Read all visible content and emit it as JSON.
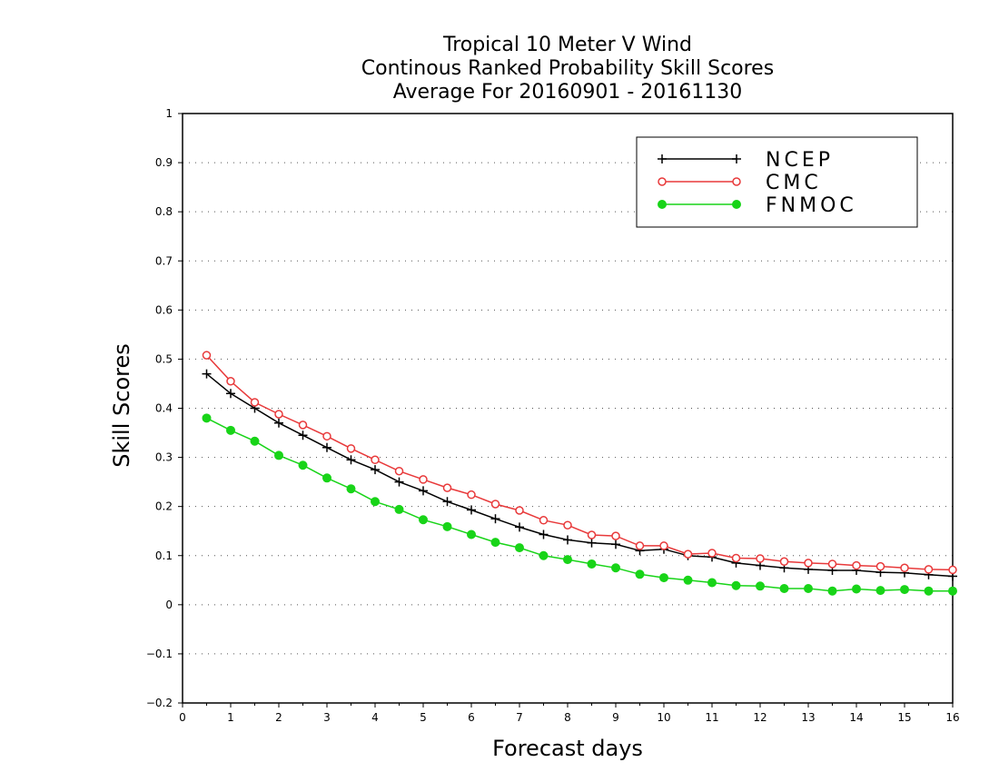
{
  "chart_data": {
    "type": "line",
    "title": [
      "Tropical 10 Meter V Wind",
      "Continous Ranked Probability Skill Scores",
      "Average For 20160901 - 20161130"
    ],
    "xlabel": "Forecast days",
    "ylabel": "Skill Scores",
    "xlim": [
      0,
      16
    ],
    "ylim": [
      -0.2,
      1
    ],
    "x_ticks": [
      "0",
      "1",
      "2",
      "3",
      "4",
      "5",
      "6",
      "7",
      "8",
      "9",
      "10",
      "11",
      "12",
      "13",
      "14",
      "15",
      "16"
    ],
    "y_ticks": [
      "-0.2",
      "-0.1",
      "0",
      "0.1",
      "0.2",
      "0.3",
      "0.4",
      "0.5",
      "0.6",
      "0.7",
      "0.8",
      "0.9",
      "1"
    ],
    "grid": "horizontal dotted",
    "legend_position": "top-right",
    "x": [
      0.5,
      1,
      1.5,
      2,
      2.5,
      3,
      3.5,
      4,
      4.5,
      5,
      5.5,
      6,
      6.5,
      7,
      7.5,
      8,
      8.5,
      9,
      9.5,
      10,
      10.5,
      11,
      11.5,
      12,
      12.5,
      13,
      13.5,
      14,
      14.5,
      15,
      15.5,
      16
    ],
    "series": [
      {
        "name": "NCEP",
        "color": "#000000",
        "marker": "plus",
        "values": [
          0.47,
          0.43,
          0.4,
          0.37,
          0.345,
          0.32,
          0.295,
          0.275,
          0.25,
          0.232,
          0.21,
          0.193,
          0.175,
          0.158,
          0.143,
          0.132,
          0.126,
          0.123,
          0.11,
          0.113,
          0.1,
          0.097,
          0.085,
          0.08,
          0.075,
          0.072,
          0.07,
          0.07,
          0.066,
          0.065,
          0.061,
          0.058
        ]
      },
      {
        "name": "CMC",
        "color": "#e8393a",
        "marker": "open-circle",
        "values": [
          0.508,
          0.455,
          0.412,
          0.388,
          0.366,
          0.343,
          0.318,
          0.295,
          0.272,
          0.255,
          0.238,
          0.224,
          0.205,
          0.192,
          0.172,
          0.162,
          0.142,
          0.14,
          0.12,
          0.12,
          0.103,
          0.105,
          0.095,
          0.094,
          0.088,
          0.085,
          0.083,
          0.08,
          0.078,
          0.075,
          0.072,
          0.071
        ]
      },
      {
        "name": "FNMOC",
        "color": "#18d418",
        "marker": "filled-circle",
        "values": [
          0.38,
          0.355,
          0.333,
          0.304,
          0.284,
          0.258,
          0.236,
          0.21,
          0.194,
          0.173,
          0.159,
          0.143,
          0.127,
          0.116,
          0.1,
          0.092,
          0.083,
          0.075,
          0.062,
          0.055,
          0.05,
          0.045,
          0.039,
          0.038,
          0.033,
          0.033,
          0.028,
          0.032,
          0.029,
          0.031,
          0.028,
          0.028
        ]
      }
    ]
  }
}
